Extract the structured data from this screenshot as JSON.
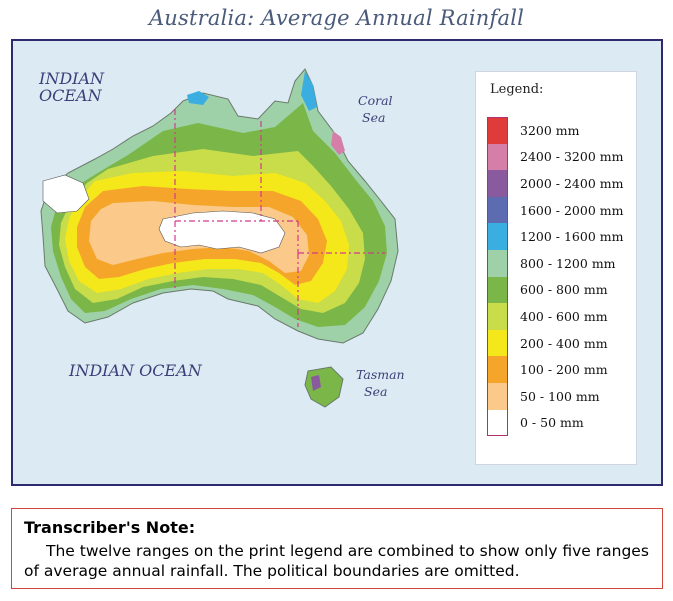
{
  "title": "Australia: Average Annual Rainfall",
  "map": {
    "ocean_labels": [
      "INDIAN OCEAN",
      "INDIAN OCEAN"
    ],
    "ocean_nw": {
      "line1": "INDIAN",
      "line2": "OCEAN"
    },
    "ocean_south": "INDIAN OCEAN",
    "coral_sea": {
      "line1": "Coral",
      "line2": "Sea"
    },
    "tasman_sea": {
      "line1": "Tasman",
      "line2": "Sea"
    },
    "colors": {
      "ocean": "#dceaf3",
      "frame": "#2e2a6e",
      "boundary": "#d03a8a"
    }
  },
  "legend": {
    "title": "Legend:",
    "items": [
      {
        "label": "3200 mm",
        "color": "#e03b3b"
      },
      {
        "label": "2400 - 3200 mm",
        "color": "#d57fa8"
      },
      {
        "label": "2000 - 2400 mm",
        "color": "#8a5a9e"
      },
      {
        "label": "1600 - 2000 mm",
        "color": "#5d6bb0"
      },
      {
        "label": "1200 - 1600 mm",
        "color": "#3aaee0"
      },
      {
        "label": "800 - 1200 mm",
        "color": "#9ed1a8"
      },
      {
        "label": "600 - 800 mm",
        "color": "#7ab648"
      },
      {
        "label": "400 - 600 mm",
        "color": "#c9dc4a"
      },
      {
        "label": "200 - 400 mm",
        "color": "#f5e81a"
      },
      {
        "label": "100 - 200 mm",
        "color": "#f5a62a"
      },
      {
        "label": "50 - 100 mm",
        "color": "#fbc98a"
      },
      {
        "label": "0 - 50 mm",
        "color": "#ffffff"
      }
    ]
  },
  "note": {
    "heading": "Transcriber's Note:",
    "body": "The twelve ranges on the print legend are combined to show only five ranges of average annual rainfall. The political boundaries are omitted."
  }
}
